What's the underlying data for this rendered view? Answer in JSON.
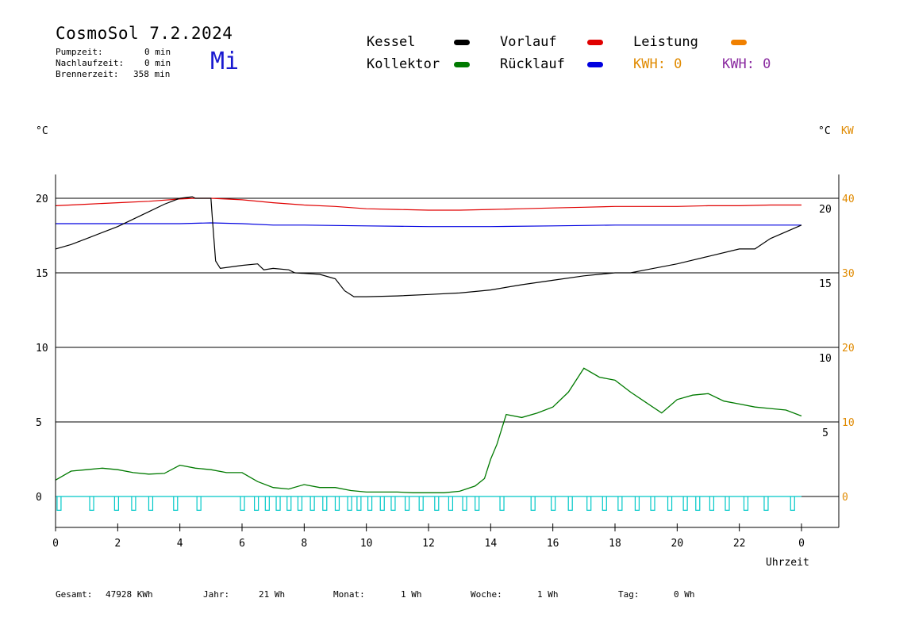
{
  "header": {
    "title": "CosmoSol 7.2.2024",
    "day": "Mi",
    "stats": [
      {
        "label": "Pumpzeit:",
        "value": "0 min"
      },
      {
        "label": "Nachlaufzeit:",
        "value": "0 min"
      },
      {
        "label": "Brennerzeit:",
        "value": "358 min"
      }
    ]
  },
  "legend": {
    "kessel": {
      "label": "Kessel",
      "color": "#000000"
    },
    "vorlauf": {
      "label": "Vorlauf",
      "color": "#e00000"
    },
    "leistung": {
      "label": "Leistung",
      "color": "#f08000"
    },
    "kollektor": {
      "label": "Kollektor",
      "color": "#007a00"
    },
    "ruecklauf": {
      "label": "Rücklauf",
      "color": "#0000e0"
    },
    "kwh_orange": "KWH: 0",
    "kwh_purple": "KWH: 0",
    "kwh_orange_color": "#e08a00",
    "kwh_purple_color": "#8a2aa0"
  },
  "axes": {
    "left_unit": "°C",
    "right_unit_c": "°C",
    "right_unit_kw": "KW",
    "xlabel": "Uhrzeit"
  },
  "totals": [
    {
      "label": "Gesamt:",
      "value": "47928 KWh"
    },
    {
      "label": "Jahr:",
      "value": "21 Wh"
    },
    {
      "label": "Monat:",
      "value": "1 Wh"
    },
    {
      "label": "Woche:",
      "value": "1 Wh"
    },
    {
      "label": "Tag:",
      "value": "0 Wh"
    }
  ],
  "chart_data": {
    "type": "line",
    "x_ticks": [
      "0",
      "2",
      "4",
      "6",
      "8",
      "10",
      "12",
      "14",
      "16",
      "18",
      "20",
      "22",
      "0"
    ],
    "x_range_hours": [
      0,
      24
    ],
    "left_axis": {
      "ticks": [
        0,
        5,
        10,
        15,
        20
      ],
      "range": [
        -1.5,
        21.5
      ]
    },
    "right_inner_axis": {
      "ticks": [
        5,
        10,
        15,
        20
      ]
    },
    "right_outer_axis": {
      "ticks": [
        0,
        10,
        20,
        30,
        40
      ],
      "color": "#e08a00"
    },
    "grid_y": [
      0,
      5,
      10,
      15,
      20.0
    ],
    "series": [
      {
        "name": "Vorlauf",
        "color": "#e00000",
        "x": [
          0,
          1,
          2,
          3,
          4,
          4.5,
          5.0,
          6,
          7,
          8,
          9,
          10,
          11,
          12,
          13,
          14,
          15,
          16,
          17,
          18,
          19,
          20,
          21,
          22,
          23,
          24
        ],
        "y": [
          19.5,
          19.6,
          19.7,
          19.8,
          19.95,
          20.0,
          20.0,
          19.9,
          19.7,
          19.55,
          19.45,
          19.3,
          19.25,
          19.2,
          19.2,
          19.25,
          19.3,
          19.35,
          19.4,
          19.45,
          19.45,
          19.45,
          19.5,
          19.5,
          19.55,
          19.55
        ]
      },
      {
        "name": "Rücklauf",
        "color": "#0000e0",
        "x": [
          0,
          2,
          4,
          5,
          6,
          7,
          8,
          10,
          12,
          13,
          14,
          16,
          18,
          20,
          22,
          24
        ],
        "y": [
          18.3,
          18.3,
          18.3,
          18.35,
          18.3,
          18.2,
          18.2,
          18.15,
          18.1,
          18.1,
          18.1,
          18.15,
          18.2,
          18.2,
          18.2,
          18.2
        ]
      },
      {
        "name": "Kessel",
        "color": "#000000",
        "x": [
          0,
          0.5,
          1,
          1.5,
          2,
          2.5,
          3,
          3.5,
          4,
          4.4,
          4.5,
          5.0,
          5.05,
          5.15,
          5.3,
          6,
          6.5,
          6.7,
          7,
          7.5,
          7.7,
          8.5,
          9.0,
          9.3,
          9.6,
          10,
          11,
          12,
          13,
          14,
          15,
          16,
          17,
          18,
          18.5,
          19,
          20,
          21,
          22,
          22.5,
          23,
          24
        ],
        "y": [
          16.6,
          16.9,
          17.3,
          17.7,
          18.1,
          18.6,
          19.1,
          19.6,
          20.0,
          20.1,
          20.0,
          20.0,
          18.5,
          15.8,
          15.3,
          15.5,
          15.6,
          15.2,
          15.3,
          15.2,
          15.0,
          14.9,
          14.6,
          13.8,
          13.4,
          13.4,
          13.45,
          13.55,
          13.65,
          13.85,
          14.2,
          14.5,
          14.8,
          15.0,
          15.0,
          15.2,
          15.6,
          16.1,
          16.6,
          16.6,
          17.3,
          18.2
        ]
      },
      {
        "name": "Kollektor",
        "color": "#007a00",
        "x": [
          0,
          0.5,
          1,
          1.5,
          2,
          2.5,
          3,
          3.5,
          4,
          4.5,
          5,
          5.5,
          6,
          6.5,
          7,
          7.5,
          8,
          8.5,
          9,
          9.5,
          10,
          10.5,
          11,
          11.5,
          12,
          12.5,
          13,
          13.5,
          13.8,
          14.0,
          14.2,
          14.5,
          15,
          15.5,
          16,
          16.5,
          17,
          17.5,
          18,
          18.5,
          19,
          19.5,
          20,
          20.5,
          21,
          21.5,
          22,
          22.5,
          23,
          23.5,
          24
        ],
        "y": [
          1.1,
          1.7,
          1.8,
          1.9,
          1.8,
          1.6,
          1.5,
          1.55,
          2.1,
          1.9,
          1.8,
          1.6,
          1.6,
          1.0,
          0.6,
          0.5,
          0.8,
          0.6,
          0.6,
          0.4,
          0.3,
          0.3,
          0.3,
          0.25,
          0.25,
          0.25,
          0.35,
          0.7,
          1.2,
          2.5,
          3.5,
          5.5,
          5.3,
          5.6,
          6.0,
          7.0,
          8.6,
          8.0,
          7.8,
          7.0,
          6.3,
          5.6,
          6.5,
          6.8,
          6.9,
          6.4,
          6.2,
          6.0,
          5.9,
          5.8,
          5.4
        ]
      },
      {
        "name": "Brenner",
        "color": "#00c8c8",
        "pulse_hours": [
          0.1,
          1.15,
          1.95,
          2.5,
          3.05,
          3.85,
          4.6,
          6.0,
          6.45,
          6.8,
          7.15,
          7.5,
          7.85,
          8.25,
          8.65,
          9.05,
          9.45,
          9.75,
          10.1,
          10.5,
          10.85,
          11.3,
          11.75,
          12.25,
          12.7,
          13.15,
          13.55,
          14.35,
          15.35,
          16.0,
          16.55,
          17.15,
          17.65,
          18.15,
          18.7,
          19.2,
          19.75,
          20.25,
          20.65,
          21.1,
          21.6,
          22.2,
          22.85,
          23.7
        ],
        "on_value": 0,
        "off_value": -0.5
      }
    ]
  }
}
